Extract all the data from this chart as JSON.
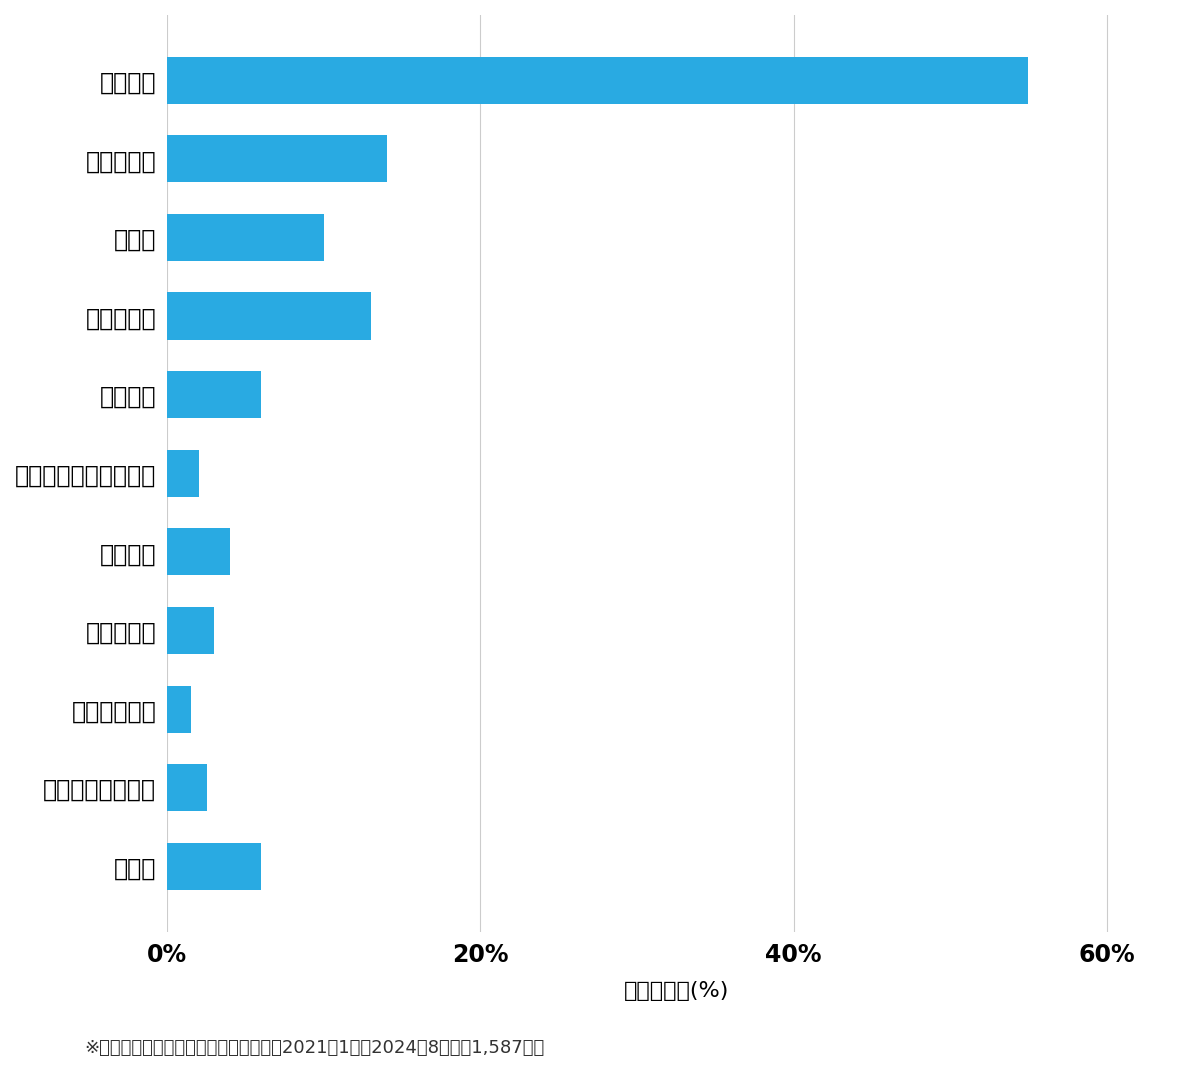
{
  "categories": [
    "その他",
    "スーツケース開鎖",
    "その他鍵作成",
    "玄関鍵作成",
    "金庫開鎖",
    "イモビ付国産車鍵作成",
    "車鍵作成",
    "その他開鎖",
    "車開鎖",
    "玄関鍵交換",
    "玄関開鎖"
  ],
  "values": [
    6.0,
    2.5,
    1.5,
    3.0,
    4.0,
    2.0,
    6.0,
    13.0,
    10.0,
    14.0,
    55.0
  ],
  "bar_color": "#29aae2",
  "xlim": [
    0,
    65
  ],
  "xticks": [
    0,
    20,
    40,
    60
  ],
  "xtick_labels": [
    "0%",
    "20%",
    "40%",
    "60%"
  ],
  "xlabel": "件数の割合(%)",
  "footnote": "※弊社受付の案件を対象に集計（期間：2021年1月～2024年8月、計1,587件）",
  "background_color": "#ffffff",
  "bar_height": 0.6,
  "label_fontsize": 17,
  "tick_fontsize": 17,
  "xlabel_fontsize": 16,
  "footnote_fontsize": 13
}
